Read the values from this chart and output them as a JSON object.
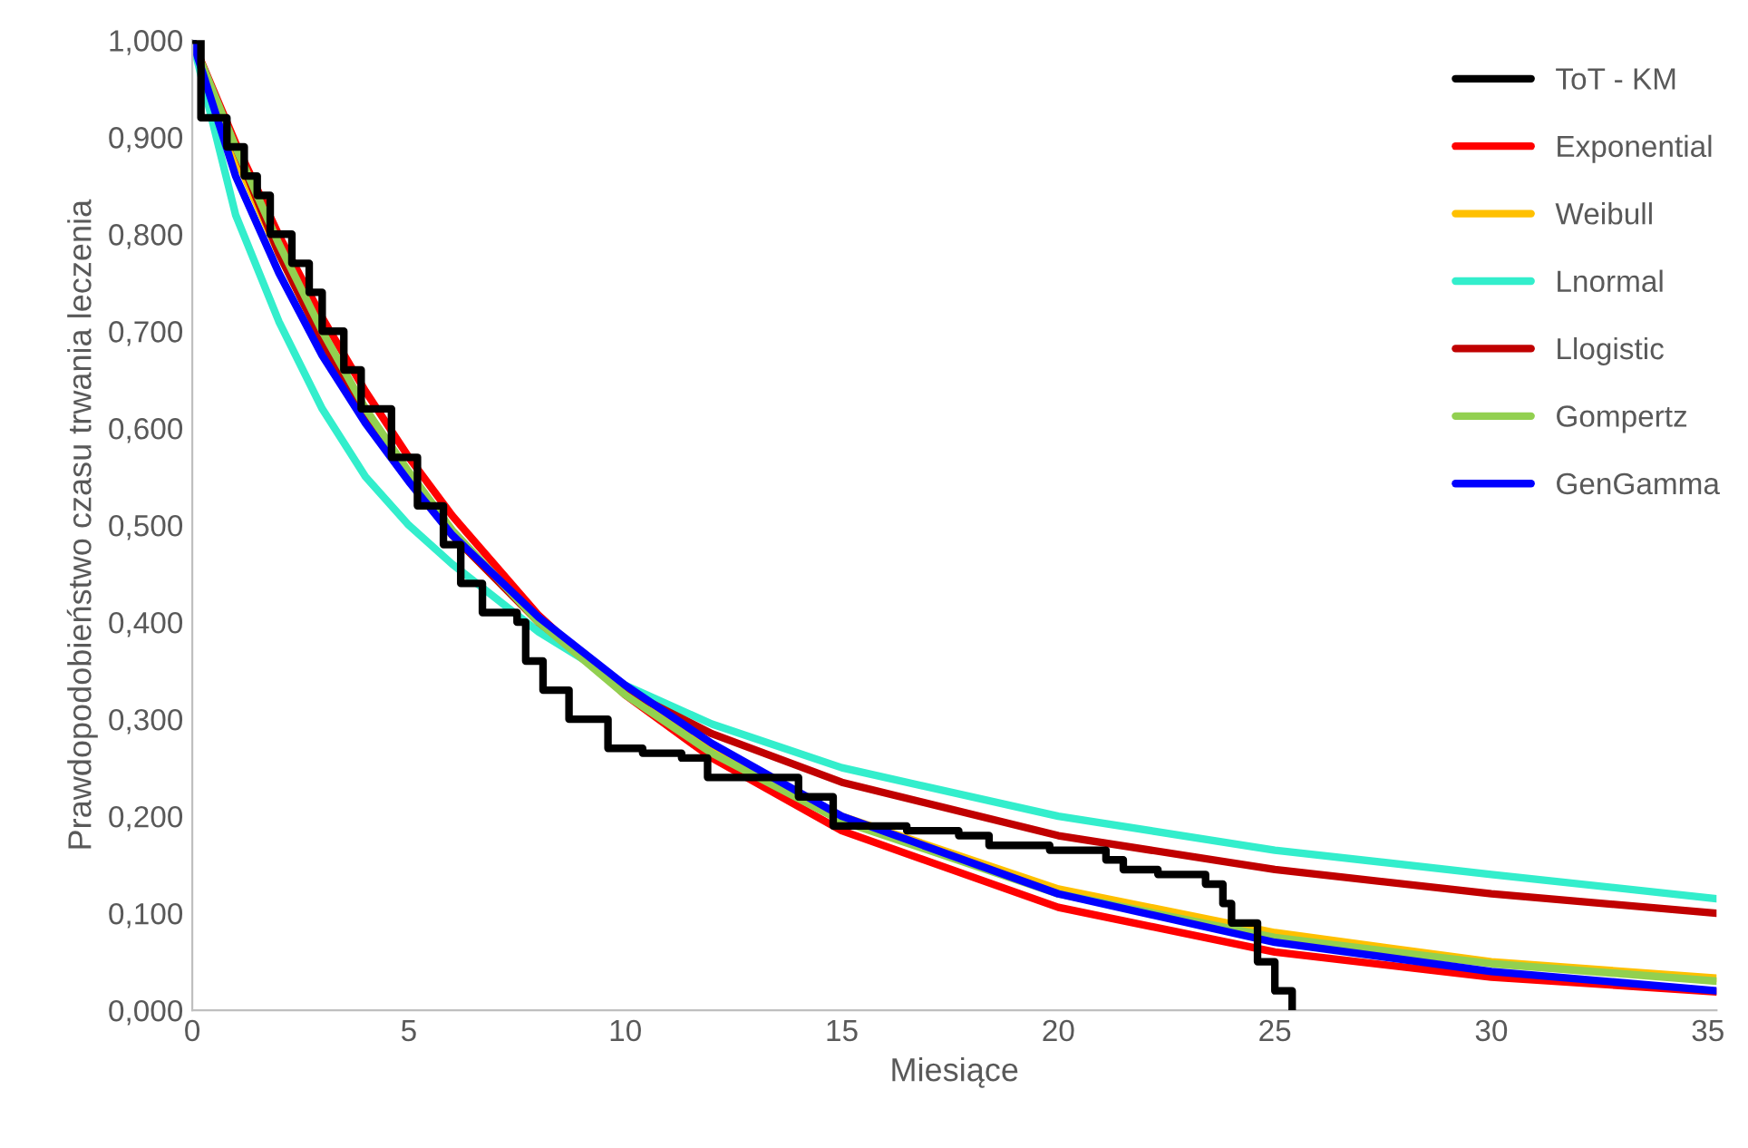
{
  "chart_data": {
    "type": "line",
    "xlabel": "Miesiące",
    "ylabel": "Prawdopodobieństwo czasu trwania leczenia",
    "xlim": [
      0,
      35.2
    ],
    "xticks": [
      0,
      5,
      10,
      15,
      20,
      25,
      30,
      35
    ],
    "ylim": [
      0,
      1
    ],
    "yticks": [
      {
        "value": 0,
        "label": "0,000"
      },
      {
        "value": 0.1,
        "label": "0,100"
      },
      {
        "value": 0.2,
        "label": "0,200"
      },
      {
        "value": 0.3,
        "label": "0,300"
      },
      {
        "value": 0.4,
        "label": "0,400"
      },
      {
        "value": 0.5,
        "label": "0,500"
      },
      {
        "value": 0.6,
        "label": "0,600"
      },
      {
        "value": 0.7,
        "label": "0,700"
      },
      {
        "value": 0.8,
        "label": "0,800"
      },
      {
        "value": 0.9,
        "label": "0,900"
      },
      {
        "value": 1,
        "label": "1,000"
      }
    ],
    "grid": false,
    "legend": "top right",
    "marker": "none",
    "line_style": "solid",
    "x": [
      0,
      1,
      2,
      3,
      4,
      5,
      6,
      8,
      10,
      12,
      15,
      20,
      25,
      30,
      35.2
    ],
    "series": [
      {
        "name": "ToT - KM",
        "color": "#000000",
        "type": "step",
        "x": [
          0,
          0.2,
          0.8,
          1.2,
          1.5,
          1.8,
          2.3,
          2.7,
          3.0,
          3.5,
          3.9,
          4.6,
          5.2,
          5.8,
          6.2,
          6.7,
          7.5,
          7.7,
          8.1,
          8.7,
          9.6,
          10.4,
          11.3,
          11.9,
          14.0,
          14.8,
          16.5,
          17.7,
          18.4,
          19.8,
          21.1,
          21.5,
          22.3,
          23.4,
          23.8,
          24.0,
          24.6,
          25.0,
          25.4
        ],
        "values": [
          1.0,
          0.92,
          0.89,
          0.86,
          0.84,
          0.8,
          0.77,
          0.74,
          0.7,
          0.66,
          0.62,
          0.57,
          0.52,
          0.48,
          0.44,
          0.41,
          0.4,
          0.36,
          0.33,
          0.3,
          0.27,
          0.265,
          0.26,
          0.24,
          0.22,
          0.19,
          0.185,
          0.18,
          0.17,
          0.165,
          0.155,
          0.145,
          0.14,
          0.13,
          0.11,
          0.09,
          0.05,
          0.02,
          0.0
        ]
      },
      {
        "name": "Exponential",
        "color": "#ff0000",
        "values": [
          1,
          0.894,
          0.799,
          0.714,
          0.638,
          0.57,
          0.51,
          0.407,
          0.325,
          0.26,
          0.185,
          0.106,
          0.06,
          0.034,
          0.019
        ]
      },
      {
        "name": "Weibull",
        "color": "#ffc000",
        "values": [
          1,
          0.88,
          0.78,
          0.69,
          0.62,
          0.55,
          0.49,
          0.4,
          0.33,
          0.27,
          0.2,
          0.125,
          0.08,
          0.05,
          0.033
        ]
      },
      {
        "name": "Lnormal",
        "color": "#33eecc",
        "values": [
          1,
          0.82,
          0.71,
          0.62,
          0.55,
          0.5,
          0.46,
          0.39,
          0.335,
          0.295,
          0.25,
          0.2,
          0.165,
          0.14,
          0.115
        ]
      },
      {
        "name": "Llogistic",
        "color": "#c00000",
        "values": [
          1,
          0.89,
          0.78,
          0.69,
          0.61,
          0.55,
          0.49,
          0.4,
          0.33,
          0.285,
          0.235,
          0.18,
          0.145,
          0.12,
          0.1
        ]
      },
      {
        "name": "Gompertz",
        "color": "#92d050",
        "values": [
          1,
          0.89,
          0.79,
          0.7,
          0.62,
          0.555,
          0.495,
          0.4,
          0.325,
          0.265,
          0.195,
          0.12,
          0.075,
          0.048,
          0.03
        ]
      },
      {
        "name": "GenGamma",
        "color": "#0000ff",
        "values": [
          1,
          0.86,
          0.76,
          0.675,
          0.605,
          0.545,
          0.49,
          0.405,
          0.335,
          0.275,
          0.2,
          0.12,
          0.07,
          0.04,
          0.02
        ]
      }
    ]
  }
}
